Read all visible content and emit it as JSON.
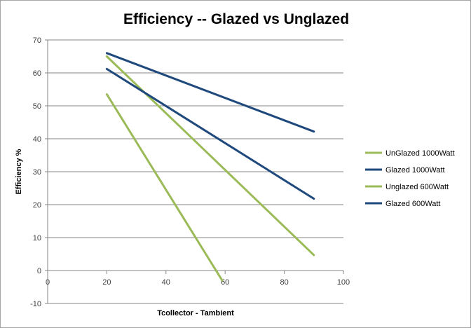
{
  "chart_data": {
    "type": "line",
    "title": "Efficiency -- Glazed vs Unglazed",
    "xlabel": "Tcollector  - Tambient",
    "ylabel": "Efficiency  %",
    "xlim": [
      0,
      100
    ],
    "ylim": [
      -10,
      70
    ],
    "xticks": [
      0,
      20,
      40,
      60,
      80,
      100
    ],
    "yticks": [
      -10,
      0,
      10,
      20,
      30,
      40,
      50,
      60,
      70
    ],
    "xtick_labels": [
      "0",
      "20",
      "40",
      "60",
      "80",
      "100"
    ],
    "ytick_labels": [
      "-10",
      "0",
      "10",
      "20",
      "30",
      "40",
      "50",
      "60",
      "70"
    ],
    "grid": "horizontal",
    "legend_position": "right",
    "series": [
      {
        "name": "UnGlazed 1000Watt",
        "color": "#9bbb59",
        "x": [
          20,
          90
        ],
        "y": [
          65,
          4.7
        ]
      },
      {
        "name": "Glazed 1000Watt",
        "color": "#1f497d",
        "x": [
          20,
          90
        ],
        "y": [
          66,
          42.2
        ]
      },
      {
        "name": "Unglazed 600Watt",
        "color": "#9bbb59",
        "x": [
          20,
          59
        ],
        "y": [
          53.5,
          -3
        ]
      },
      {
        "name": "Glazed 600Watt",
        "color": "#1f497d",
        "x": [
          20,
          90
        ],
        "y": [
          61.2,
          21.8
        ]
      }
    ]
  }
}
